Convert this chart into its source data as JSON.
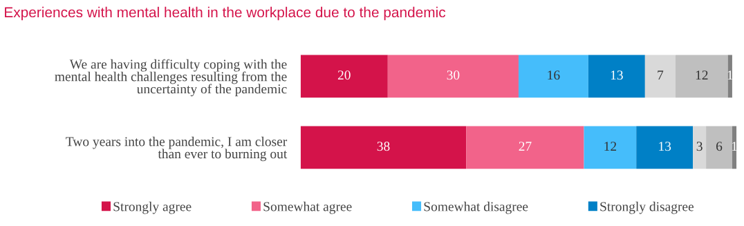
{
  "chart_data": {
    "type": "bar",
    "orientation": "horizontal",
    "stacked": true,
    "data_labels": true,
    "legend": "bottom",
    "grid": false,
    "title": "Experiences with mental health in the workplace due to the pandemic",
    "categories": [
      "We are having difficulty coping with the\nmental health challenges resulting from the\nuncertainty of the pandemic",
      "Two years into the pandemic, I am closer\nthan ever to burning out"
    ],
    "series": [
      {
        "name": "Strongly agree",
        "color": "#d4134a",
        "values": [
          20,
          38
        ]
      },
      {
        "name": "Somewhat agree",
        "color": "#f2638a",
        "values": [
          30,
          27
        ]
      },
      {
        "name": "Somewhat disagree",
        "color": "#45bdfb",
        "values": [
          16,
          12
        ]
      },
      {
        "name": "Strongly disagree",
        "color": "#0080c6",
        "values": [
          13,
          13
        ]
      },
      {
        "color": "#d9d9d9",
        "values": [
          7,
          3
        ]
      },
      {
        "color": "#bfbfbf",
        "values": [
          12,
          6
        ]
      },
      {
        "color": "#808080",
        "values": [
          1,
          1
        ]
      }
    ]
  }
}
